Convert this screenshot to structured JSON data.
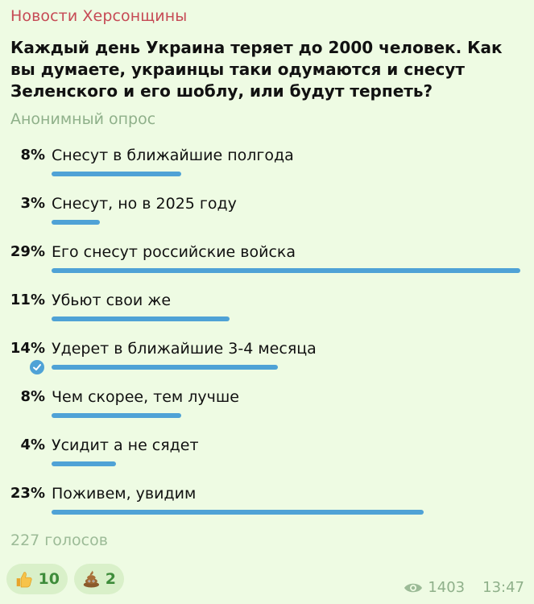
{
  "channel": {
    "name": "Новости Херсонщины"
  },
  "poll": {
    "question": "Каждый день Украина теряет до 2000 человек. Как вы думаете, украинцы таки одумаются и снесут Зеленского и его шоблу, или будут терпеть?",
    "type_label": "Анонимный опрос",
    "options": [
      {
        "pct_label": "8%",
        "percent": 8,
        "label": "Снесут в ближайшие полгода",
        "selected": false
      },
      {
        "pct_label": "3%",
        "percent": 3,
        "label": "Снесут, но в 2025 году",
        "selected": false
      },
      {
        "pct_label": "29%",
        "percent": 29,
        "label": "Его снесут российские войска",
        "selected": false
      },
      {
        "pct_label": "11%",
        "percent": 11,
        "label": "Убьют свои же",
        "selected": false
      },
      {
        "pct_label": "14%",
        "percent": 14,
        "label": "Удерет в ближайшие 3-4 месяца",
        "selected": true
      },
      {
        "pct_label": "8%",
        "percent": 8,
        "label": "Чем скорее, тем лучше",
        "selected": false
      },
      {
        "pct_label": "4%",
        "percent": 4,
        "label": "Усидит а не сядет",
        "selected": false
      },
      {
        "pct_label": "23%",
        "percent": 23,
        "label": "Поживем, увидим",
        "selected": false
      }
    ],
    "votes_label": "227 голосов"
  },
  "reactions": [
    {
      "icon": "thumbs-up-icon",
      "count": "10"
    },
    {
      "icon": "poop-icon",
      "count": "2"
    }
  ],
  "meta": {
    "views": "1403",
    "time": "13:47"
  },
  "colors": {
    "accent": "#4fa2d6",
    "channel": "#c64a55",
    "muted": "#8fb08a",
    "background": "#eefbe3"
  }
}
